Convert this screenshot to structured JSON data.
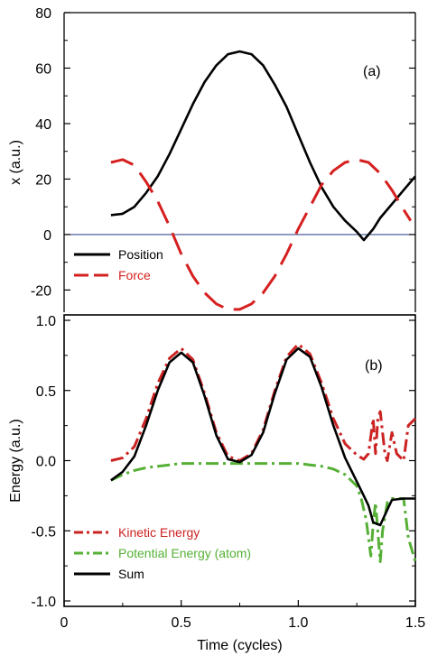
{
  "chart_data": [
    {
      "type": "line",
      "panel_label": "(a)",
      "ylabel": "x (a.u.)",
      "xlim": [
        0.2,
        1.5
      ],
      "ylim": [
        -28,
        80
      ],
      "yticks": [
        80,
        60,
        40,
        20,
        0,
        -20
      ],
      "ytick_labels": [
        "80",
        "60",
        "40",
        "20",
        "0",
        "-20"
      ],
      "zero_line_color": "#3a4f8f",
      "legend_position": "bottom-left",
      "series": [
        {
          "name": "Position",
          "color": "#000000",
          "style": "solid",
          "x": [
            0.2,
            0.25,
            0.3,
            0.35,
            0.4,
            0.45,
            0.5,
            0.55,
            0.6,
            0.65,
            0.7,
            0.75,
            0.8,
            0.85,
            0.9,
            0.95,
            1.0,
            1.05,
            1.1,
            1.15,
            1.2,
            1.25,
            1.28,
            1.32,
            1.35,
            1.4,
            1.45,
            1.5
          ],
          "y": [
            7,
            7.5,
            10,
            15,
            21,
            29,
            38,
            47,
            55,
            61,
            65,
            66,
            65,
            61,
            54,
            46,
            36,
            26,
            17,
            10,
            5,
            1,
            -2,
            2,
            6,
            11,
            16,
            21
          ]
        },
        {
          "name": "Force",
          "color": "#d62020",
          "style": "dashed",
          "x": [
            0.2,
            0.25,
            0.3,
            0.35,
            0.4,
            0.45,
            0.5,
            0.55,
            0.6,
            0.65,
            0.7,
            0.75,
            0.8,
            0.85,
            0.9,
            0.95,
            1.0,
            1.05,
            1.1,
            1.15,
            1.2,
            1.25,
            1.3,
            1.35,
            1.4,
            1.45,
            1.48
          ],
          "y": [
            26,
            27,
            25,
            19,
            12,
            3,
            -7,
            -15,
            -21,
            -25,
            -27,
            -27,
            -25,
            -21,
            -15,
            -7,
            2,
            10,
            18,
            23,
            26,
            27,
            26,
            22,
            16,
            9,
            5
          ]
        }
      ]
    },
    {
      "type": "line",
      "panel_label": "(b)",
      "ylabel": "Energy (a.u.)",
      "xlabel": "Time (cycles)",
      "xlim": [
        0,
        1.5
      ],
      "ylim": [
        -1.0,
        1.0
      ],
      "xticks": [
        0,
        0.5,
        1.0,
        1.5
      ],
      "xtick_labels": [
        "0",
        "0.5",
        "1.0",
        "1.5"
      ],
      "yticks": [
        1.0,
        0.5,
        0.0,
        -0.5,
        -1.0
      ],
      "ytick_labels": [
        "1.0",
        "0.5",
        "0.0",
        "-0.5",
        "-1.0"
      ],
      "legend_position": "bottom-left",
      "series": [
        {
          "name": "Kinetic Energy",
          "color": "#cc2222",
          "style": "dashdot",
          "x": [
            0.2,
            0.25,
            0.3,
            0.35,
            0.4,
            0.45,
            0.5,
            0.55,
            0.6,
            0.65,
            0.7,
            0.75,
            0.8,
            0.85,
            0.9,
            0.95,
            1.0,
            1.05,
            1.1,
            1.15,
            1.2,
            1.25,
            1.28,
            1.3,
            1.32,
            1.33,
            1.34,
            1.35,
            1.37,
            1.38,
            1.4,
            1.42,
            1.45,
            1.47,
            1.5
          ],
          "y": [
            0.0,
            0.02,
            0.1,
            0.3,
            0.55,
            0.73,
            0.8,
            0.72,
            0.48,
            0.2,
            0.03,
            0.0,
            0.05,
            0.22,
            0.5,
            0.74,
            0.83,
            0.76,
            0.55,
            0.3,
            0.12,
            0.04,
            0.01,
            0.05,
            0.3,
            0.05,
            0.3,
            0.35,
            0.05,
            0.0,
            0.2,
            0.05,
            0.0,
            0.25,
            0.3
          ]
        },
        {
          "name": "Potential Energy (atom)",
          "color": "#55b035",
          "style": "dashdot",
          "x": [
            0.2,
            0.25,
            0.3,
            0.35,
            0.4,
            0.45,
            0.5,
            0.6,
            0.7,
            0.8,
            0.9,
            1.0,
            1.05,
            1.1,
            1.15,
            1.2,
            1.25,
            1.27,
            1.29,
            1.31,
            1.32,
            1.33,
            1.35,
            1.36,
            1.38,
            1.4,
            1.43,
            1.45,
            1.47,
            1.5
          ],
          "y": [
            -0.14,
            -0.1,
            -0.07,
            -0.05,
            -0.04,
            -0.03,
            -0.02,
            -0.02,
            -0.02,
            -0.02,
            -0.02,
            -0.02,
            -0.03,
            -0.04,
            -0.06,
            -0.1,
            -0.18,
            -0.28,
            -0.42,
            -0.68,
            -0.45,
            -0.3,
            -0.72,
            -0.5,
            -0.3,
            -0.27,
            -0.27,
            -0.27,
            -0.55,
            -0.72
          ]
        },
        {
          "name": "Sum",
          "color": "#000000",
          "style": "solid",
          "x": [
            0.2,
            0.25,
            0.3,
            0.35,
            0.4,
            0.45,
            0.5,
            0.55,
            0.6,
            0.65,
            0.7,
            0.75,
            0.8,
            0.85,
            0.9,
            0.95,
            1.0,
            1.05,
            1.1,
            1.15,
            1.2,
            1.25,
            1.28,
            1.3,
            1.32,
            1.35,
            1.38,
            1.4,
            1.45,
            1.5
          ],
          "y": [
            -0.14,
            -0.08,
            0.03,
            0.25,
            0.5,
            0.7,
            0.77,
            0.7,
            0.46,
            0.18,
            0.01,
            -0.01,
            0.04,
            0.2,
            0.48,
            0.72,
            0.8,
            0.74,
            0.52,
            0.25,
            0.02,
            -0.15,
            -0.25,
            -0.32,
            -0.44,
            -0.46,
            -0.35,
            -0.28,
            -0.27,
            -0.27
          ]
        }
      ]
    }
  ]
}
